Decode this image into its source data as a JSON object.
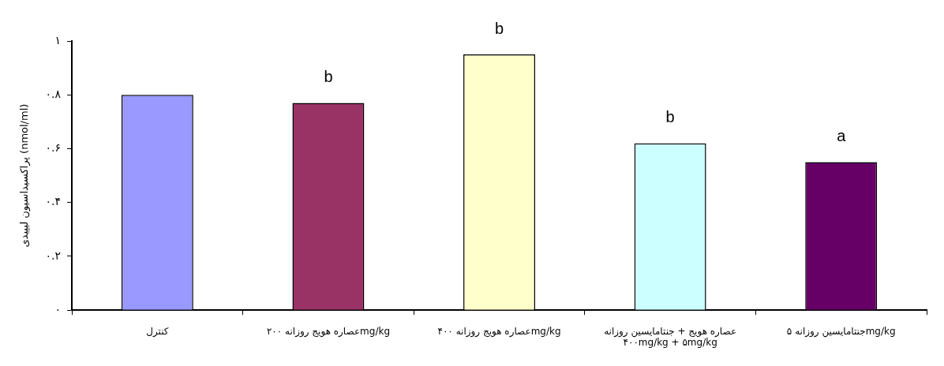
{
  "chart_data": {
    "type": "bar",
    "ylabel": "پراکسیداسیون لیپیدی (nmol/ml)",
    "categories": [
      "کنترل",
      "عصاره هویج روزانه ۲۰۰mg/kg",
      "عصاره هویج روزانه ۴۰۰mg/kg",
      "عصاره هویج + جنتامایسین روزانه\n۴۰۰mg/kg + ۵mg/kg",
      "جنتامایسین روزانه ۵mg/kg"
    ],
    "values": [
      0.8,
      0.77,
      0.95,
      0.62,
      0.55
    ],
    "colors": [
      "#9999ff",
      "#993366",
      "#ffffcc",
      "#ccffff",
      "#660066"
    ],
    "ylim": [
      0,
      1
    ],
    "yticks": [
      {
        "value": 0,
        "label": "۰"
      },
      {
        "value": 0.2,
        "label": "۰.۲"
      },
      {
        "value": 0.4,
        "label": "۰.۴"
      },
      {
        "value": 0.6,
        "label": "۰.۶"
      },
      {
        "value": 0.8,
        "label": "۰.۸"
      },
      {
        "value": 1,
        "label": "۱"
      }
    ],
    "annotations": [
      {
        "text": "b",
        "x": "عصاره هویج روزانه ۲۰۰mg/kg",
        "y": 0.77
      },
      {
        "text": "b",
        "x": "عصاره هویج روزانه ۴۰۰mg/kg",
        "y": 0.95
      },
      {
        "text": "b",
        "x": "عصاره هویج + جنتامایسین روزانه\n۴۰۰mg/kg + ۵mg/kg",
        "y": 0.62
      },
      {
        "text": "a",
        "x": "جنتامایسین روزانه ۵mg/kg",
        "y": 0.55
      }
    ],
    "grid": false,
    "legend": false
  }
}
